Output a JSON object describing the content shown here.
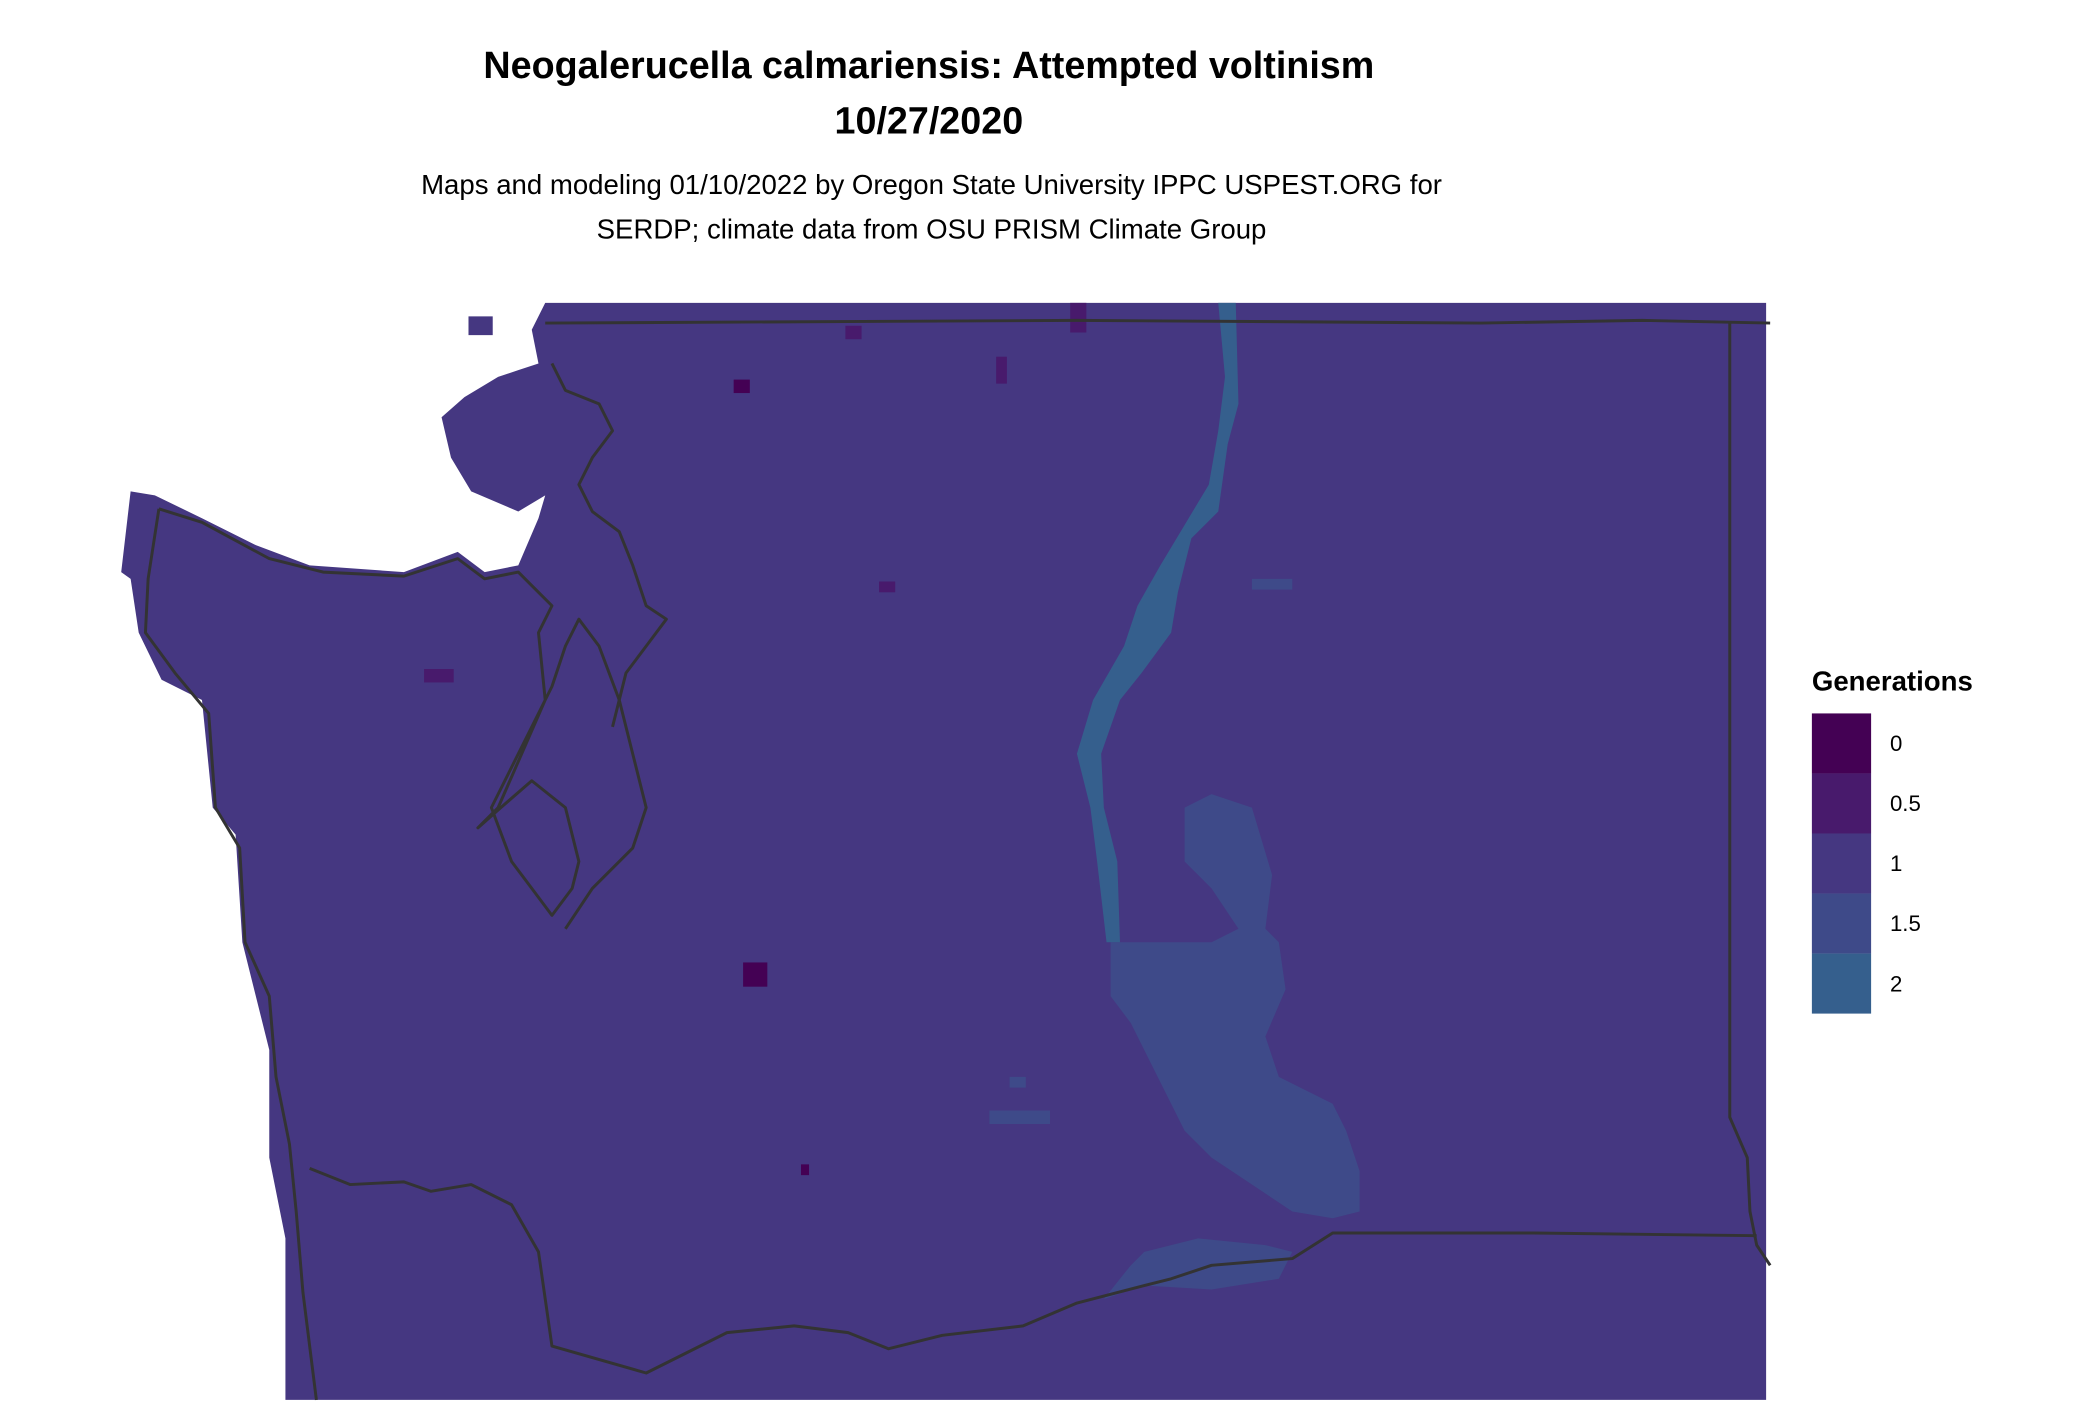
{
  "chart_data": {
    "type": "heatmap",
    "title": "Neogalerucella calmariensis: Attempted voltinism",
    "date": "10/27/2020",
    "subtitle_line1": "Maps and modeling 01/10/2022 by Oregon State University IPPC USPEST.ORG for",
    "subtitle_line2": "SERDP; climate data from OSU PRISM Climate Group",
    "legend": {
      "title": "Generations",
      "placement": "right",
      "entries": [
        {
          "label": "0",
          "value": 0,
          "color": "#440154"
        },
        {
          "label": "0.5",
          "value": 0.5,
          "color": "#481A6C"
        },
        {
          "label": "1",
          "value": 1,
          "color": "#453781"
        },
        {
          "label": "1.5",
          "value": 1.5,
          "color": "#3E4A89"
        },
        {
          "label": "2",
          "value": 2,
          "color": "#355F8D"
        }
      ]
    },
    "dominant_value": 1,
    "border_color": "#333333"
  }
}
